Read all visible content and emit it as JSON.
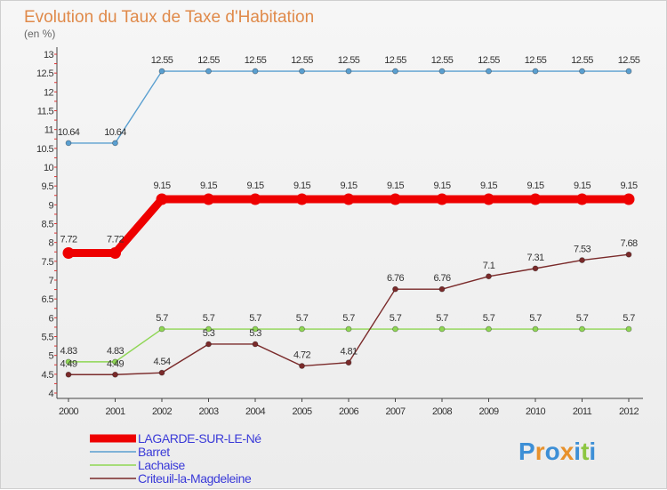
{
  "chart_data": {
    "type": "line",
    "title": "Evolution du Taux de Taxe d'Habitation",
    "subtitle": "(en %)",
    "xlabel": "",
    "ylabel": "",
    "x": [
      "2000",
      "2001",
      "2002",
      "2003",
      "2004",
      "2005",
      "2006",
      "2007",
      "2008",
      "2009",
      "2010",
      "2011",
      "2012"
    ],
    "ylim": [
      4,
      13
    ],
    "yticks": [
      "4",
      "4.5",
      "5",
      "5.5",
      "6",
      "6.5",
      "7",
      "7.5",
      "8",
      "8.5",
      "9",
      "9.5",
      "10",
      "10.5",
      "11",
      "11.5",
      "12",
      "12.5",
      "13"
    ],
    "grid": false,
    "legend_position": "bottom-left",
    "series": [
      {
        "name": "LAGARDE-SUR-LE-Né",
        "color": "#ee0000",
        "values": [
          7.72,
          7.72,
          9.15,
          9.15,
          9.15,
          9.15,
          9.15,
          9.15,
          9.15,
          9.15,
          9.15,
          9.15,
          9.15
        ],
        "labels": [
          "7.72",
          "7.72",
          "9.15",
          "9.15",
          "9.15",
          "9.15",
          "9.15",
          "9.15",
          "9.15",
          "9.15",
          "9.15",
          "9.15",
          "9.15"
        ]
      },
      {
        "name": "Barret",
        "color": "#5a9fd0",
        "values": [
          10.64,
          10.64,
          12.55,
          12.55,
          12.55,
          12.55,
          12.55,
          12.55,
          12.55,
          12.55,
          12.55,
          12.55,
          12.55
        ],
        "labels": [
          "10.64",
          "10.64",
          "12.55",
          "12.55",
          "12.55",
          "12.55",
          "12.55",
          "12.55",
          "12.55",
          "12.55",
          "12.55",
          "12.55",
          "12.55"
        ]
      },
      {
        "name": "Lachaise",
        "color": "#8ed653",
        "values": [
          4.83,
          4.83,
          5.7,
          5.7,
          5.7,
          5.7,
          5.7,
          5.7,
          5.7,
          5.7,
          5.7,
          5.7,
          5.7
        ],
        "labels": [
          "4.83",
          "4.83",
          "5.7",
          "5.7",
          "5.7",
          "5.7",
          "5.7",
          "5.7",
          "5.7",
          "5.7",
          "5.7",
          "5.7",
          "5.7"
        ]
      },
      {
        "name": "Criteuil-la-Magdeleine",
        "color": "#7a2a2a",
        "values": [
          4.49,
          4.49,
          4.54,
          5.3,
          5.3,
          4.72,
          4.81,
          6.76,
          6.76,
          7.1,
          7.31,
          7.53,
          7.68
        ],
        "labels": [
          "4.49",
          "4.49",
          "4.54",
          "5.3",
          "5.3",
          "4.72",
          "4.81",
          "6.76",
          "6.76",
          "7.1",
          "7.31",
          "7.53",
          "7.68"
        ]
      }
    ]
  },
  "logo": {
    "text": "Proxiti",
    "letters": [
      "P",
      "r",
      "o",
      "x",
      "i",
      "t",
      "i"
    ],
    "colors": [
      "#3d8fd6",
      "#e8912b",
      "#3d8fd6",
      "#e8912b",
      "#3d8fd6",
      "#8dc641",
      "#3d8fd6"
    ]
  }
}
